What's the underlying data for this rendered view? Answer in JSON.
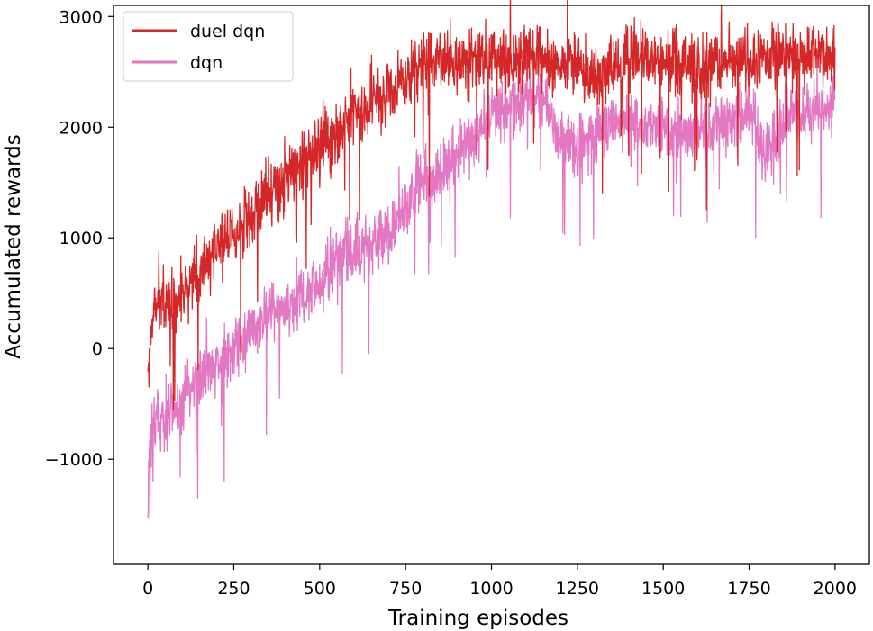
{
  "chart_data": {
    "type": "line",
    "title": "",
    "xlabel": "Training episodes",
    "ylabel": "Accumulated rewards",
    "xlim": [
      -100,
      2100
    ],
    "ylim": [
      -1950,
      3100
    ],
    "xticks": [
      0,
      250,
      500,
      750,
      1000,
      1250,
      1500,
      1750,
      2000
    ],
    "yticks": [
      -1000,
      0,
      1000,
      2000,
      3000
    ],
    "xtick_labels": [
      "0",
      "250",
      "500",
      "750",
      "1000",
      "1250",
      "1500",
      "1750",
      "2000"
    ],
    "ytick_labels": [
      "−1000",
      "0",
      "1000",
      "2000",
      "3000"
    ],
    "grid": false,
    "legend_position": "top-left",
    "series": [
      {
        "name": "duel dqn",
        "color": "#d62728",
        "trend_x": [
          0,
          5,
          15,
          30,
          50,
          75,
          100,
          150,
          200,
          250,
          300,
          350,
          400,
          450,
          500,
          550,
          600,
          650,
          700,
          750,
          800,
          850,
          900,
          950,
          1000,
          1050,
          1100,
          1150,
          1200,
          1250,
          1300,
          1350,
          1400,
          1450,
          1500,
          1550,
          1600,
          1650,
          1700,
          1750,
          1800,
          1850,
          1900,
          1950,
          2000
        ],
        "trend_y": [
          -300,
          100,
          300,
          500,
          400,
          450,
          500,
          700,
          900,
          1050,
          1200,
          1400,
          1550,
          1700,
          1850,
          1950,
          2100,
          2200,
          2300,
          2450,
          2550,
          2600,
          2600,
          2620,
          2600,
          2600,
          2610,
          2620,
          2580,
          2570,
          2500,
          2550,
          2600,
          2620,
          2620,
          2600,
          2550,
          2550,
          2600,
          2600,
          2650,
          2650,
          2650,
          2680,
          2600
        ],
        "noise": 230
      },
      {
        "name": "dqn",
        "color": "#e377c2",
        "trend_x": [
          0,
          5,
          15,
          30,
          50,
          75,
          100,
          150,
          200,
          250,
          300,
          350,
          400,
          450,
          500,
          550,
          600,
          650,
          700,
          750,
          800,
          850,
          900,
          950,
          1000,
          1050,
          1100,
          1150,
          1200,
          1250,
          1300,
          1350,
          1400,
          1450,
          1500,
          1550,
          1600,
          1650,
          1700,
          1750,
          1800,
          1850,
          1900,
          1950,
          2000
        ],
        "trend_y": [
          -1500,
          -900,
          -750,
          -600,
          -700,
          -600,
          -500,
          -250,
          -150,
          0,
          200,
          350,
          400,
          500,
          600,
          800,
          900,
          950,
          1050,
          1250,
          1550,
          1600,
          1800,
          1900,
          2100,
          2200,
          2300,
          2200,
          1900,
          1800,
          1950,
          2050,
          2050,
          2000,
          1950,
          1950,
          1950,
          2000,
          2050,
          2150,
          1800,
          2050,
          2150,
          2150,
          2300
        ],
        "noise": 220
      }
    ]
  }
}
